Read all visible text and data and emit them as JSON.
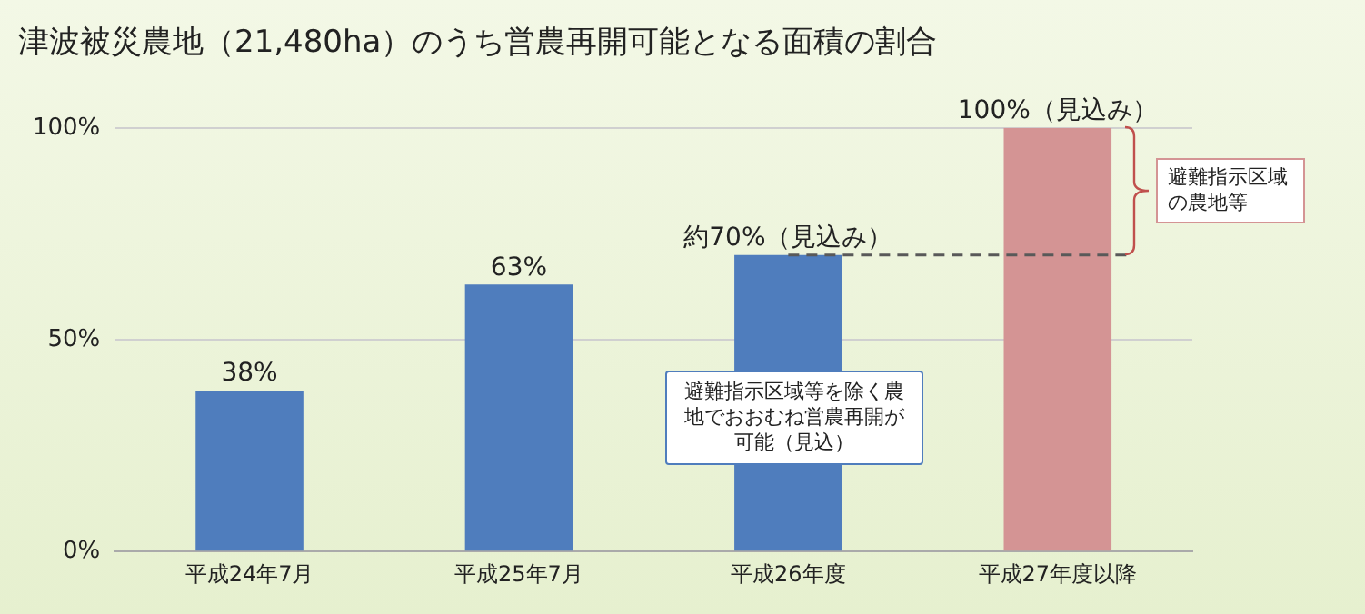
{
  "chart_data": {
    "type": "bar",
    "title": "津波被災農地（21,480ha）のうち営農再開可能となる面積の割合",
    "categories": [
      "平成24年7月",
      "平成25年7月",
      "平成26年度",
      "平成27年度以降"
    ],
    "values": [
      38,
      63,
      70,
      100
    ],
    "colors": [
      "#4f7dbd",
      "#4f7dbd",
      "#4f7dbd",
      "#d49494"
    ],
    "value_labels": [
      "38%",
      "63%",
      "約70%（見込み）",
      "100%（見込み）"
    ],
    "ylim": [
      0,
      100
    ],
    "yticks": [
      {
        "value": 0,
        "label": "0%"
      },
      {
        "value": 50,
        "label": "50%"
      },
      {
        "value": 100,
        "label": "100%"
      }
    ],
    "grid": "y",
    "legend": false,
    "ref_lines": [
      {
        "axis": "y",
        "value": 70,
        "label": null,
        "color": "#595959",
        "line_style": "dashed"
      }
    ],
    "annotations": [
      "避難指示区域の農地等",
      "避難指示区域等を除く農地でおおむね営農再開が可能（見込）"
    ]
  }
}
